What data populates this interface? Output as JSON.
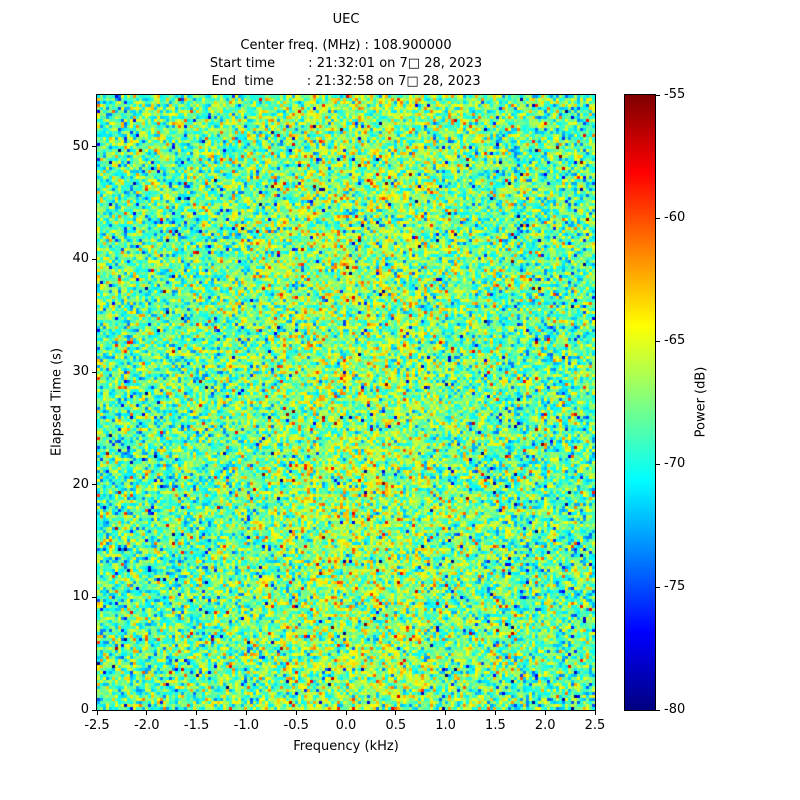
{
  "header": {
    "title": "UEC",
    "center_freq_line": "Center freq. (MHz) : 108.900000",
    "start_time_line": "Start time        : 21:32:01 on 7□ 28, 2023",
    "end_time_line": "End  time        : 21:32:58 on 7□ 28, 2023"
  },
  "chart_data": {
    "type": "heatmap",
    "title": "UEC",
    "xlabel": "Frequency (kHz)",
    "ylabel": "Elapsed Time (s)",
    "colorbar_label": "Power (dB)",
    "x_range": [
      -2.5,
      2.5
    ],
    "y_range": [
      0,
      54.6
    ],
    "x_tick_labels": [
      "-2.5",
      "-2.0",
      "-1.5",
      "-1.0",
      "-0.5",
      "0.0",
      "0.5",
      "1.0",
      "1.5",
      "2.0",
      "2.5"
    ],
    "y_tick_labels": [
      "0",
      "10",
      "20",
      "30",
      "40",
      "50"
    ],
    "colorbar_tick_labels": [
      "-55",
      "-60",
      "-65",
      "-70",
      "-75",
      "-80"
    ],
    "value_range": [
      -80,
      -55
    ],
    "colormap": "jet",
    "grid": false,
    "legend": "colorbar-right",
    "noise": {
      "description": "broadband noise floor, mostly -72 to -64 dB (green/cyan) with sparse hot (red/orange) and cold (dark blue) speckles; slightly elevated power near center frequencies",
      "mean_db": -68.5,
      "std_db": 2.8,
      "hot_speck_prob": 0.013,
      "cold_speck_prob": 0.013,
      "signal_center_khz": 0.1,
      "signal_sigma_khz": 0.9,
      "signal_amp_db": 1.6,
      "seed": 42
    }
  }
}
